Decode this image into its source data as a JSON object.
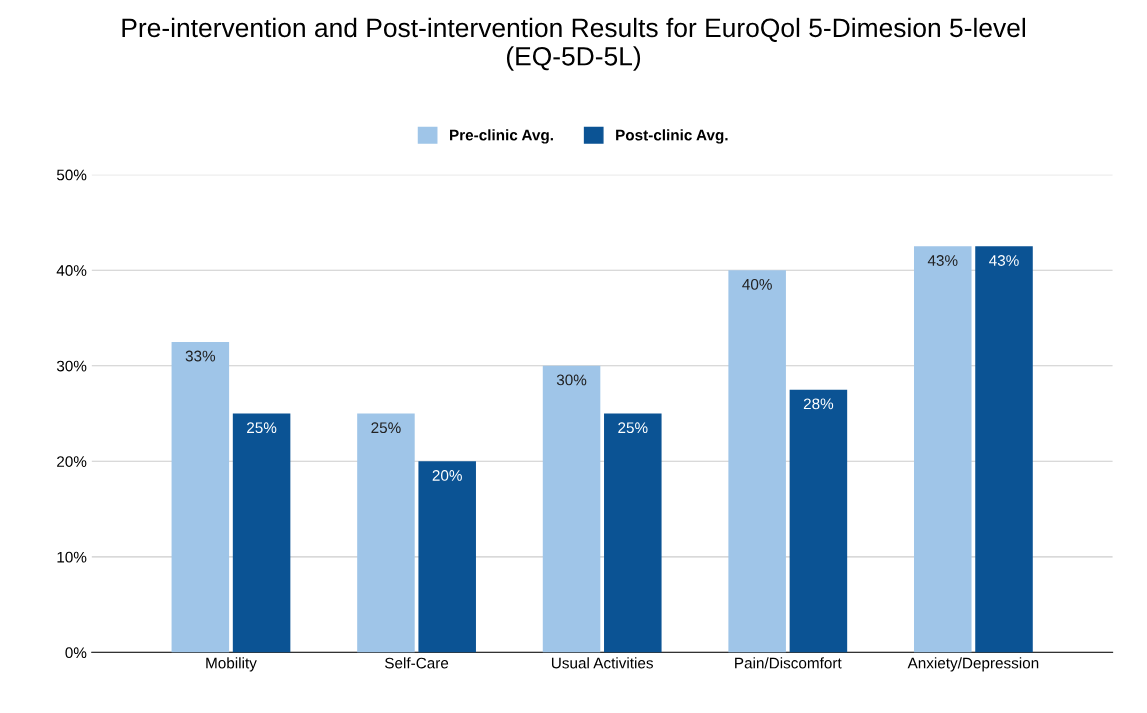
{
  "chart_data": {
    "type": "bar",
    "title": "Pre-intervention and Post-intervention Results for EuroQol 5-Dimesion 5-level\n(EQ-5D-5L)",
    "categories": [
      "Mobility",
      "Self-Care",
      "Usual Activities",
      "Pain/Discomfort",
      "Anxiety/Depression"
    ],
    "series": [
      {
        "name": "Pre-clinic Avg.",
        "color": "#9fc5e8",
        "values": [
          32.5,
          25,
          30,
          40,
          42.5
        ],
        "value_labels": [
          "33%",
          "25%",
          "30%",
          "40%",
          "43%"
        ]
      },
      {
        "name": "Post-clinic Avg.",
        "color": "#0b5394",
        "values": [
          25,
          20,
          25,
          27.5,
          42.5
        ],
        "value_labels": [
          "25%",
          "20%",
          "25%",
          "28%",
          "43%"
        ]
      }
    ],
    "ylim": [
      0,
      50
    ],
    "yticks": [
      {
        "value": 0,
        "label": "0%"
      },
      {
        "value": 10,
        "label": "10%"
      },
      {
        "value": 20,
        "label": "20%"
      },
      {
        "value": 30,
        "label": "30%"
      },
      {
        "value": 40,
        "label": "40%"
      },
      {
        "value": 50,
        "label": "50%"
      }
    ],
    "grid": "y",
    "legend": "top"
  }
}
